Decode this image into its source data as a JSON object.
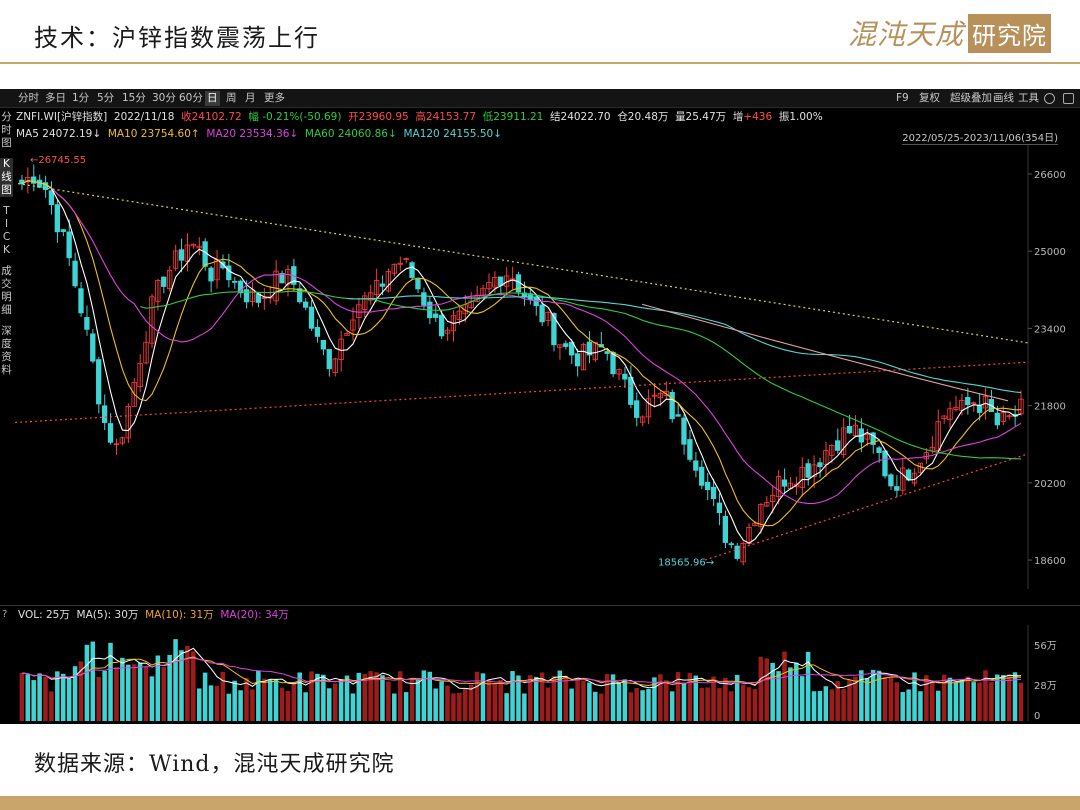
{
  "slide": {
    "title": "技术：沪锌指数震荡上行",
    "logo_left": "混沌天成",
    "logo_right": "研究院",
    "source": "数据来源：Wind，混沌天成研究院"
  },
  "toolbar": {
    "timeframes": [
      "分时",
      "多日",
      "1分",
      "5分",
      "15分",
      "30分",
      "60分",
      "日",
      "周",
      "月",
      "更多"
    ],
    "active": "日",
    "right_items": [
      "F9",
      "复权",
      "超级叠加",
      "画线",
      "工具"
    ]
  },
  "sidenav": {
    "groups": [
      [
        "分",
        "时",
        "图"
      ],
      [
        "K",
        "线",
        "图"
      ],
      [
        "T",
        "I",
        "C",
        "K"
      ],
      [
        "成",
        "交",
        "明",
        "细"
      ],
      [
        "深",
        "度",
        "资",
        "料"
      ]
    ]
  },
  "info": {
    "symbol": "ZNFI.WI[沪锌指数]",
    "date": "2022/11/18",
    "close": "收24102.72",
    "change": "幅 -0.21%(-50.69)",
    "open": "开23960.95",
    "high": "高24153.77",
    "low": "低23911.21",
    "settle": "结24022.70",
    "oi": "仓20.48万",
    "volume": "量25.47万",
    "oi_change_label": "增",
    "oi_change": "+436",
    "amplitude": "振1.00%"
  },
  "ma": {
    "ma5": "MA5 24072.19↓",
    "ma10": "MA10 23754.60↑",
    "ma20": "MA20 23534.36↓",
    "ma60": "MA60 24060.86↓",
    "ma120": "MA120 24155.50↓"
  },
  "range_label": "2022/05/25-2023/11/06(354日)",
  "price_axis": [
    "26600",
    "25000",
    "23400",
    "21800",
    "20200",
    "18600"
  ],
  "annotations": {
    "high": "←26745.55",
    "low": "18565.96→"
  },
  "vol": {
    "q": "?",
    "vol": "VOL: 25万",
    "ma5": "MA(5): 30万",
    "ma10": "MA(10): 31万",
    "ma20": "MA(20): 34万",
    "axis": [
      "56万",
      "28万",
      "0"
    ]
  },
  "colors": {
    "up": "#ff3b3b",
    "down": "#3fd3d3",
    "ma5": "#ffffff",
    "ma10": "#f0c018",
    "ma20": "#e040e0",
    "ma60": "#2ecc40",
    "ma120": "#4fd7d7"
  },
  "chart_data": {
    "type": "candlestick",
    "price_ylim": [
      18000,
      27200
    ],
    "key_levels": {
      "high": 26745.55,
      "low": 18565.96
    },
    "close_path": [
      26400,
      26600,
      26300,
      25600,
      24800,
      23800,
      22600,
      21400,
      20900,
      21800,
      22900,
      23900,
      24500,
      24800,
      25200,
      25000,
      24500,
      24700,
      24300,
      24100,
      24000,
      24300,
      24500,
      24300,
      23700,
      23000,
      22700,
      23300,
      23900,
      24000,
      24200,
      24700,
      24800,
      24400,
      23900,
      23400,
      23500,
      23600,
      23800,
      24200,
      24500,
      24600,
      24200,
      23800,
      23600,
      23200,
      22900,
      22800,
      22900,
      23000,
      22500,
      22000,
      21700,
      21900,
      22000,
      21500,
      21000,
      20500,
      19800,
      19200,
      18800,
      19200,
      19800,
      20000,
      20300,
      20400,
      20500,
      20700,
      21000,
      21200,
      21300,
      21000,
      20800,
      20200,
      20300,
      20600,
      20900,
      21400,
      21800,
      21700,
      21900,
      21800,
      21400,
      21500,
      21700
    ]
  }
}
